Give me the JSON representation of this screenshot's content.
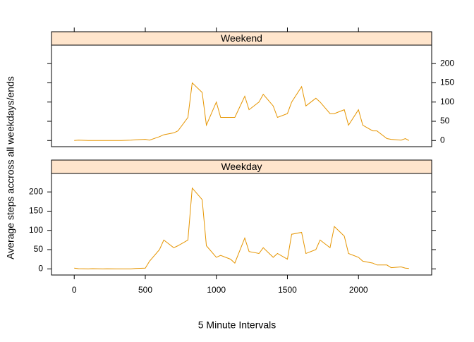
{
  "chart_data": {
    "type": "line",
    "xlabel": "5 Minute Intervals",
    "ylabel": "Average steps accross all weekdays/ends",
    "x": [
      0,
      30,
      100,
      130,
      200,
      230,
      300,
      330,
      400,
      430,
      500,
      530,
      600,
      630,
      700,
      730,
      800,
      830,
      900,
      930,
      1000,
      1030,
      1100,
      1130,
      1200,
      1230,
      1300,
      1330,
      1400,
      1430,
      1500,
      1530,
      1600,
      1630,
      1700,
      1730,
      1800,
      1830,
      1900,
      1930,
      2000,
      2030,
      2100,
      2130,
      2200,
      2230,
      2300,
      2330,
      2355
    ],
    "xlim": [
      -160,
      2515
    ],
    "xticks": [
      0,
      500,
      1000,
      1500,
      2000
    ],
    "ylim": [
      -16,
      248
    ],
    "yticks": [
      0,
      50,
      100,
      150,
      200
    ],
    "series": [
      {
        "name": "Weekend",
        "color": "#e69500",
        "values": [
          0.2,
          1,
          0,
          0,
          0,
          0,
          0,
          0,
          1,
          2,
          3,
          1,
          10,
          15,
          20,
          25,
          60,
          150,
          125,
          40,
          100,
          60,
          60,
          60,
          115,
          80,
          100,
          120,
          90,
          60,
          70,
          100,
          140,
          90,
          110,
          100,
          70,
          70,
          80,
          40,
          80,
          40,
          25,
          25,
          5,
          3,
          1,
          5,
          0
        ]
      },
      {
        "name": "Weekday",
        "color": "#e69500",
        "values": [
          2,
          0.5,
          0.2,
          0.5,
          0,
          0.3,
          0,
          0.2,
          0,
          1,
          2,
          20,
          50,
          75,
          55,
          60,
          75,
          210,
          180,
          60,
          30,
          35,
          25,
          15,
          80,
          45,
          40,
          55,
          30,
          40,
          25,
          90,
          95,
          40,
          50,
          75,
          55,
          110,
          85,
          40,
          30,
          20,
          15,
          10,
          10,
          3,
          5,
          2,
          1
        ]
      }
    ]
  }
}
